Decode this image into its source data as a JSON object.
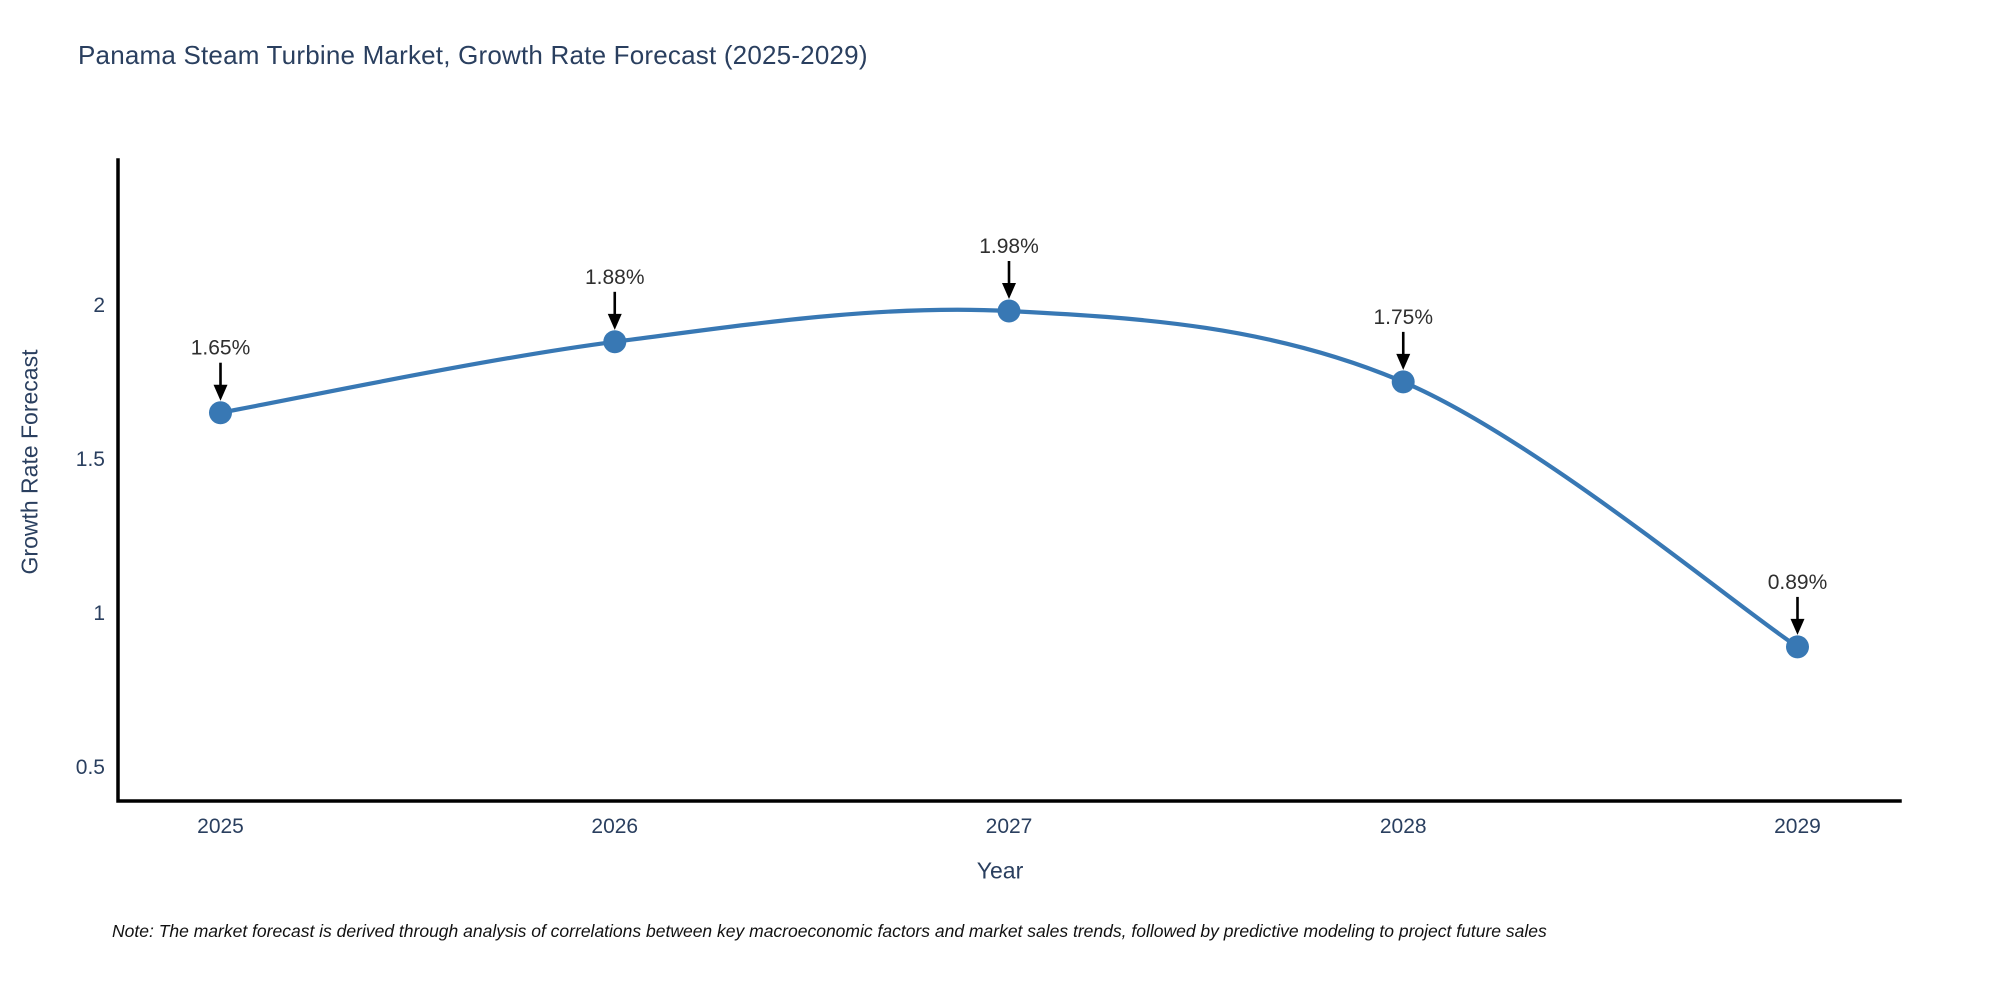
{
  "chart_data": {
    "type": "line",
    "title": "Panama Steam Turbine Market, Growth Rate Forecast (2025-2029)",
    "xlabel": "Year",
    "ylabel": "Growth Rate Forecast",
    "categories": [
      2025,
      2026,
      2027,
      2028,
      2029
    ],
    "values": [
      1.65,
      1.88,
      1.98,
      1.75,
      0.89
    ],
    "point_labels": [
      "1.65%",
      "1.88%",
      "1.98%",
      "1.75%",
      "0.89%"
    ],
    "yticks": [
      0.5,
      1,
      1.5,
      2
    ],
    "ylim": [
      0.39,
      2.47
    ],
    "xlim": [
      2024.74,
      2029.26
    ],
    "grid": false,
    "legend": "none",
    "line_color": "#3878b4",
    "marker_color": "#3878b4",
    "axis_line_color": "#000000",
    "annotation_arrow_color": "#000000"
  },
  "note": "Note: The market forecast is derived through analysis of correlations between key macroeconomic factors and market sales trends, followed by predictive modeling to project future sales"
}
